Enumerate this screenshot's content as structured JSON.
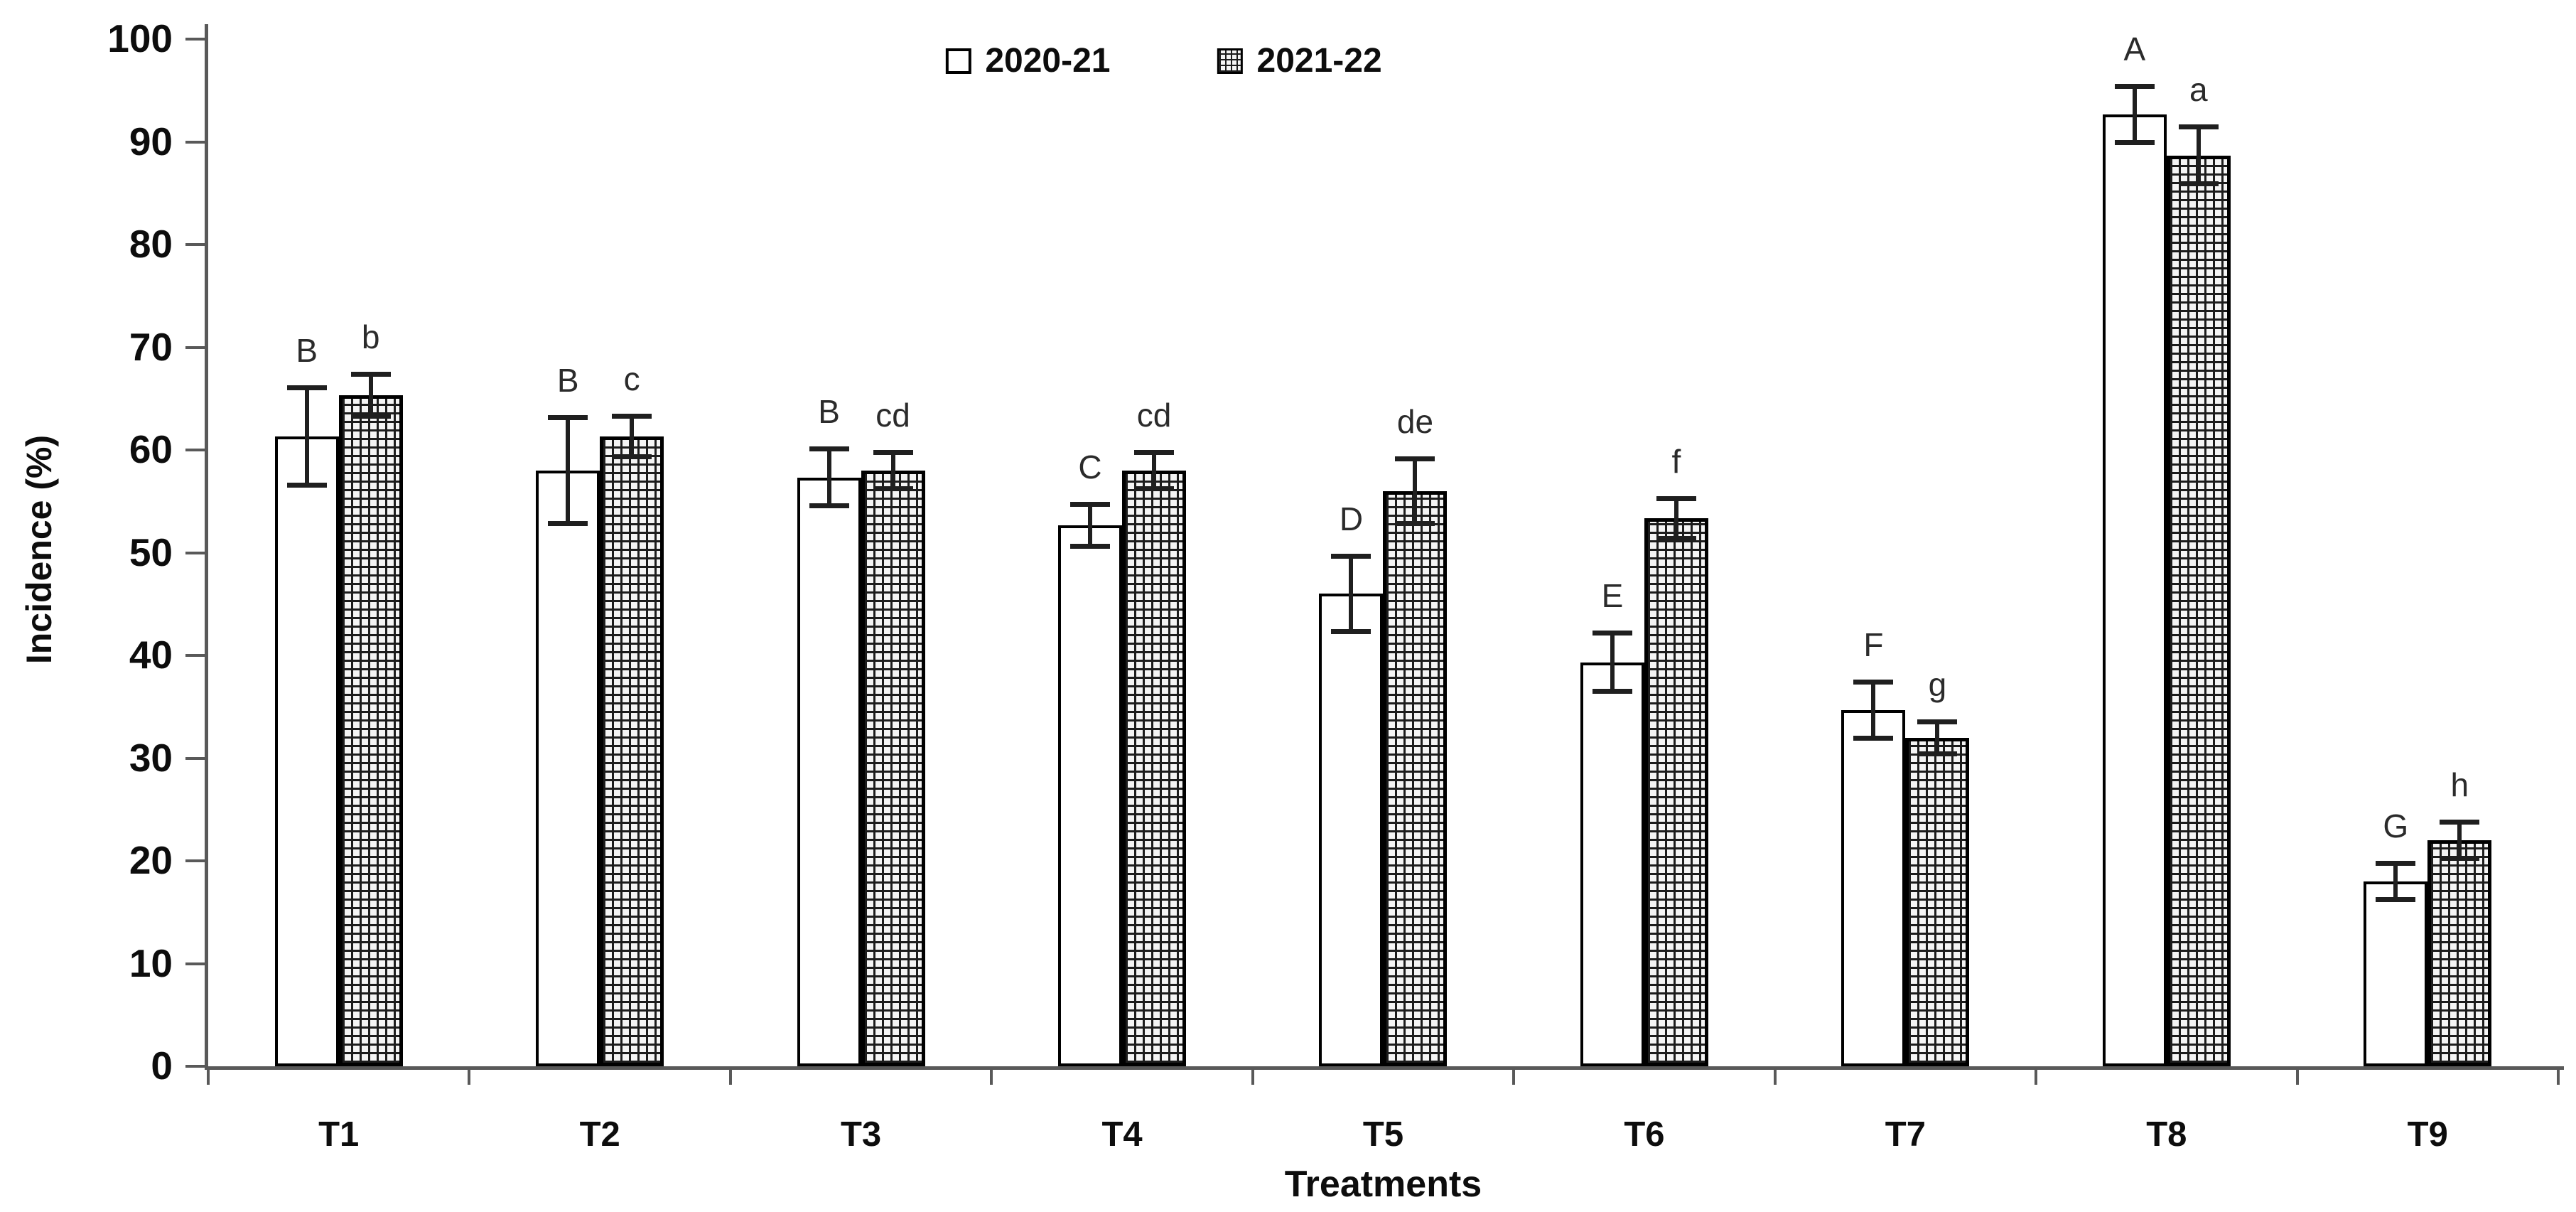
{
  "figure": {
    "background": "#ffffff"
  },
  "chart_data": {
    "type": "bar",
    "title": "",
    "xlabel": "Treatments",
    "ylabel": "Incidence (%)",
    "ylim": [
      0,
      100
    ],
    "ytick_step": 10,
    "yticks": [
      "0",
      "10",
      "20",
      "30",
      "40",
      "50",
      "60",
      "70",
      "80",
      "90",
      "100"
    ],
    "categories": [
      "T1",
      "T2",
      "T3",
      "T4",
      "T5",
      "T6",
      "T7",
      "T8",
      "T9"
    ],
    "grid": false,
    "legend_position": "top-center",
    "axis_color": "#595959",
    "bar_outline_color": "#000000",
    "error_bar_color": "#1f1f1f",
    "series": [
      {
        "name": "2020-21",
        "fill": "white",
        "values": [
          61.33,
          58.0,
          57.33,
          52.67,
          46.0,
          39.33,
          34.67,
          92.67,
          18.0
        ],
        "errors": [
          5.0,
          5.4,
          3.0,
          2.3,
          3.9,
          3.1,
          3.0,
          3.0,
          2.0
        ],
        "sig_labels": [
          "B",
          "B",
          "B",
          "C",
          "D",
          "E",
          "F",
          "A",
          "G"
        ]
      },
      {
        "name": "2021-22",
        "fill": "crosshatch",
        "values": [
          65.33,
          61.33,
          58.0,
          58.0,
          56.0,
          53.33,
          32.0,
          88.67,
          22.0
        ],
        "errors": [
          2.3,
          2.2,
          2.0,
          2.0,
          3.4,
          2.2,
          1.8,
          3.0,
          2.0
        ],
        "sig_labels": [
          "b",
          "c",
          "cd",
          "cd",
          "de",
          "f",
          "g",
          "a",
          "h"
        ]
      }
    ]
  }
}
